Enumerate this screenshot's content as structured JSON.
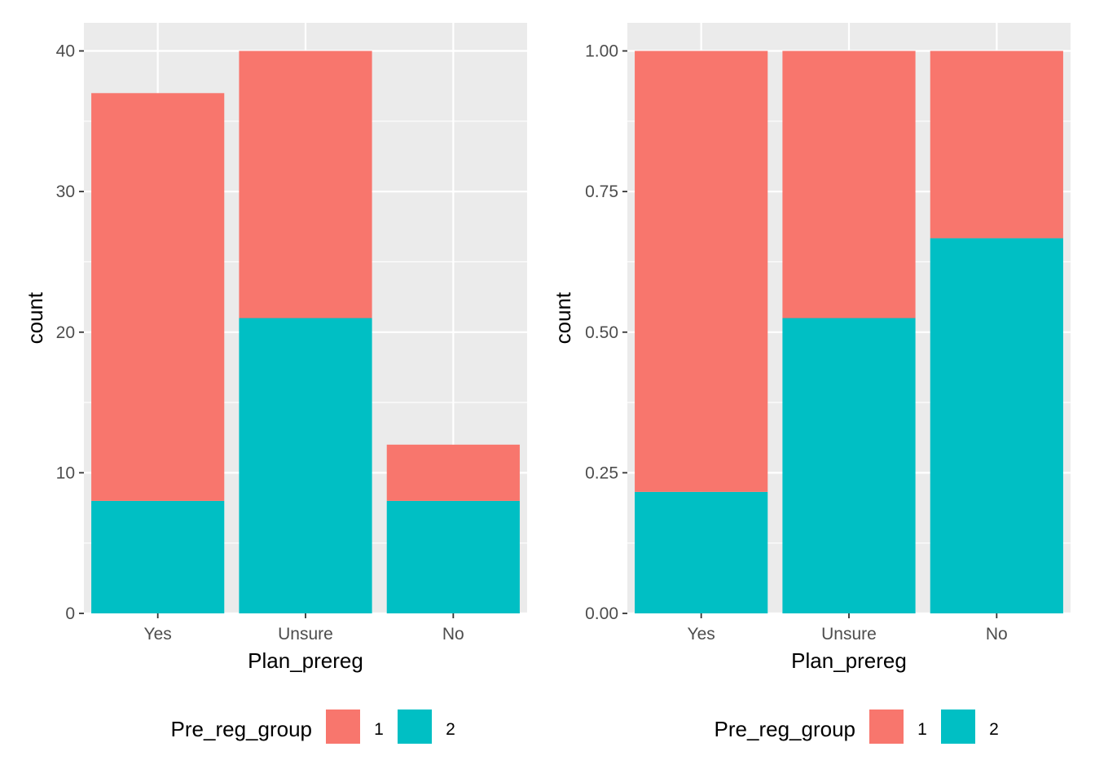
{
  "colors": {
    "group_1": "#F8766D",
    "group_2": "#00BFC4",
    "panel_bg": "#EBEBEB",
    "grid": "#FFFFFF"
  },
  "chart_data": [
    {
      "type": "bar",
      "stacked": true,
      "position": "stack",
      "categories": [
        "Yes",
        "Unsure",
        "No"
      ],
      "series": [
        {
          "name": "1",
          "values": [
            29,
            19,
            4
          ]
        },
        {
          "name": "2",
          "values": [
            8,
            21,
            8
          ]
        }
      ],
      "xlabel": "Plan_prereg",
      "ylabel": "count",
      "ylim": [
        0,
        42
      ],
      "yticks": [
        0,
        10,
        20,
        30,
        40
      ],
      "ytick_labels": [
        "0",
        "10",
        "20",
        "30",
        "40"
      ],
      "grid": true,
      "legend": {
        "title": "Pre_reg_group",
        "entries": [
          "1",
          "2"
        ],
        "placement": "bottom"
      }
    },
    {
      "type": "bar",
      "stacked": true,
      "position": "fill",
      "categories": [
        "Yes",
        "Unsure",
        "No"
      ],
      "series": [
        {
          "name": "1",
          "values": [
            0.784,
            0.475,
            0.333
          ]
        },
        {
          "name": "2",
          "values": [
            0.216,
            0.525,
            0.667
          ]
        }
      ],
      "xlabel": "Plan_prereg",
      "ylabel": "count",
      "ylim": [
        0,
        1.05
      ],
      "yticks": [
        0,
        0.25,
        0.5,
        0.75,
        1.0
      ],
      "ytick_labels": [
        "0.00",
        "0.25",
        "0.50",
        "0.75",
        "1.00"
      ],
      "grid": true,
      "legend": {
        "title": "Pre_reg_group",
        "entries": [
          "1",
          "2"
        ],
        "placement": "bottom"
      }
    }
  ]
}
